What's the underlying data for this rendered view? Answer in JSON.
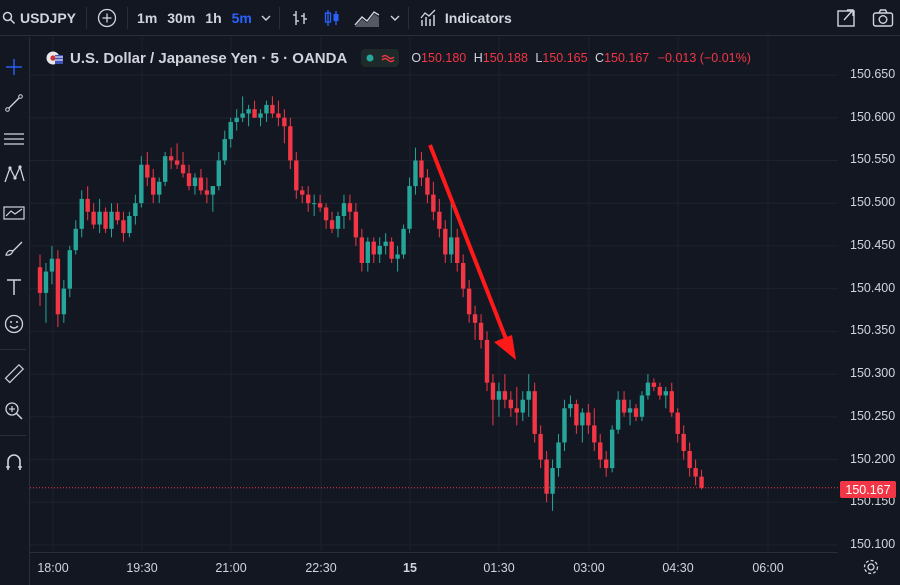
{
  "topbar": {
    "symbol": "USDJPY",
    "timeframes": [
      "1m",
      "30m",
      "1h",
      "5m"
    ],
    "active_timeframe": "5m",
    "indicators_label": "Indicators"
  },
  "legend": {
    "title": "U.S. Dollar / Japanese Yen · 5 · OANDA",
    "o_label": "O",
    "o_value": "150.180",
    "h_label": "H",
    "h_value": "150.188",
    "l_label": "L",
    "l_value": "150.165",
    "c_label": "C",
    "c_value": "150.167",
    "change": "−0.013 (−0.01%)"
  },
  "price_axis": {
    "labels": [
      "150.650",
      "150.600",
      "150.550",
      "150.500",
      "150.450",
      "150.400",
      "150.350",
      "150.300",
      "150.250",
      "150.200",
      "150.150",
      "150.100"
    ],
    "last_price": "150.167"
  },
  "time_axis": {
    "labels": [
      "18:00",
      "19:30",
      "21:00",
      "22:30",
      "15",
      "01:30",
      "03:00",
      "04:30",
      "06:00"
    ]
  },
  "colors": {
    "up": "#26a69a",
    "down": "#f23645",
    "background": "#131722",
    "grid": "#1e222d",
    "arrow": "#ff1a1a",
    "accent": "#2962ff"
  },
  "icons": {
    "left_toolbar": [
      "crosshair-icon",
      "trendline-icon",
      "fib-icon",
      "pattern-icon",
      "forecast-icon",
      "brush-icon",
      "text-icon",
      "emoji-icon",
      "ruler-icon",
      "zoom-icon",
      "magnet-icon"
    ]
  },
  "chart_data": {
    "type": "candlestick",
    "symbol": "USDJPY",
    "interval": "5",
    "ylim": [
      150.1,
      150.65
    ],
    "x_ticks": [
      "18:00",
      "19:30",
      "21:00",
      "22:30",
      "15",
      "01:30",
      "03:00",
      "04:30",
      "06:00"
    ],
    "annotation": "downward-arrow",
    "last_price": 150.167,
    "candles": [
      [
        150.425,
        150.44,
        150.38,
        150.395
      ],
      [
        150.395,
        150.43,
        150.36,
        150.42
      ],
      [
        150.42,
        150.45,
        150.405,
        150.435
      ],
      [
        150.435,
        150.445,
        150.355,
        150.37
      ],
      [
        150.37,
        150.41,
        150.36,
        150.4
      ],
      [
        150.4,
        150.45,
        150.39,
        150.445
      ],
      [
        150.445,
        150.48,
        150.44,
        150.47
      ],
      [
        150.47,
        150.515,
        150.46,
        150.505
      ],
      [
        150.505,
        150.52,
        150.48,
        150.49
      ],
      [
        150.49,
        150.5,
        150.47,
        150.475
      ],
      [
        150.475,
        150.505,
        150.465,
        150.49
      ],
      [
        150.49,
        150.495,
        150.465,
        150.47
      ],
      [
        150.47,
        150.5,
        150.46,
        150.49
      ],
      [
        150.49,
        150.5,
        150.475,
        150.48
      ],
      [
        150.48,
        150.49,
        150.455,
        150.465
      ],
      [
        150.465,
        150.49,
        150.46,
        150.485
      ],
      [
        150.485,
        150.51,
        150.475,
        150.5
      ],
      [
        150.5,
        150.555,
        150.495,
        150.545
      ],
      [
        150.545,
        150.56,
        150.52,
        150.53
      ],
      [
        150.53,
        150.54,
        150.5,
        150.51
      ],
      [
        150.51,
        150.53,
        150.5,
        150.525
      ],
      [
        150.525,
        150.56,
        150.52,
        150.555
      ],
      [
        150.555,
        150.565,
        150.54,
        150.55
      ],
      [
        150.55,
        150.57,
        150.54,
        150.545
      ],
      [
        150.545,
        150.56,
        150.53,
        150.535
      ],
      [
        150.535,
        150.545,
        150.515,
        150.52
      ],
      [
        150.52,
        150.535,
        150.51,
        150.53
      ],
      [
        150.53,
        150.54,
        150.51,
        150.515
      ],
      [
        150.515,
        150.53,
        150.5,
        150.51
      ],
      [
        150.51,
        150.52,
        150.49,
        150.52
      ],
      [
        150.52,
        150.56,
        150.515,
        150.55
      ],
      [
        150.55,
        150.585,
        150.545,
        150.575
      ],
      [
        150.575,
        150.6,
        150.565,
        150.595
      ],
      [
        150.595,
        150.61,
        150.585,
        150.6
      ],
      [
        150.6,
        150.625,
        150.595,
        150.605
      ],
      [
        150.605,
        150.615,
        150.59,
        150.61
      ],
      [
        150.61,
        150.62,
        150.6,
        150.6
      ],
      [
        150.6,
        150.61,
        150.59,
        150.605
      ],
      [
        150.605,
        150.62,
        150.595,
        150.615
      ],
      [
        150.615,
        150.625,
        150.6,
        150.605
      ],
      [
        150.605,
        150.62,
        150.59,
        150.6
      ],
      [
        150.6,
        150.61,
        150.57,
        150.59
      ],
      [
        150.59,
        150.6,
        150.54,
        150.55
      ],
      [
        150.55,
        150.56,
        150.505,
        150.515
      ],
      [
        150.515,
        150.52,
        150.5,
        150.51
      ],
      [
        150.51,
        150.52,
        150.49,
        150.5
      ],
      [
        150.5,
        150.51,
        150.485,
        150.5
      ],
      [
        150.5,
        150.51,
        150.49,
        150.495
      ],
      [
        150.495,
        150.5,
        150.47,
        150.48
      ],
      [
        150.48,
        150.49,
        150.465,
        150.47
      ],
      [
        150.47,
        150.49,
        150.46,
        150.485
      ],
      [
        150.485,
        150.51,
        150.47,
        150.5
      ],
      [
        150.5,
        150.51,
        150.48,
        150.49
      ],
      [
        150.49,
        150.5,
        150.45,
        150.46
      ],
      [
        150.46,
        150.47,
        150.42,
        150.43
      ],
      [
        150.43,
        150.46,
        150.42,
        150.455
      ],
      [
        150.455,
        150.46,
        150.43,
        150.44
      ],
      [
        150.44,
        150.46,
        150.43,
        150.45
      ],
      [
        150.45,
        150.465,
        150.44,
        150.455
      ],
      [
        150.455,
        150.46,
        150.43,
        150.435
      ],
      [
        150.435,
        150.45,
        150.42,
        150.44
      ],
      [
        150.44,
        150.475,
        150.435,
        150.47
      ],
      [
        150.47,
        150.53,
        150.465,
        150.52
      ],
      [
        150.52,
        150.565,
        150.51,
        150.55
      ],
      [
        150.55,
        150.56,
        150.52,
        150.53
      ],
      [
        150.53,
        150.54,
        150.5,
        150.51
      ],
      [
        150.51,
        150.525,
        150.48,
        150.49
      ],
      [
        150.49,
        150.505,
        150.46,
        150.47
      ],
      [
        150.47,
        150.48,
        150.43,
        150.44
      ],
      [
        150.44,
        150.5,
        150.43,
        150.46
      ],
      [
        150.46,
        150.47,
        150.42,
        150.43
      ],
      [
        150.43,
        150.44,
        150.39,
        150.4
      ],
      [
        150.4,
        150.41,
        150.36,
        150.37
      ],
      [
        150.37,
        150.38,
        150.34,
        150.36
      ],
      [
        150.36,
        150.37,
        150.33,
        150.34
      ],
      [
        150.34,
        150.35,
        150.28,
        150.29
      ],
      [
        150.29,
        150.3,
        150.24,
        150.27
      ],
      [
        150.27,
        150.29,
        150.25,
        150.28
      ],
      [
        150.28,
        150.3,
        150.26,
        150.27
      ],
      [
        150.27,
        150.28,
        150.25,
        150.26
      ],
      [
        150.26,
        150.285,
        150.24,
        150.255
      ],
      [
        150.255,
        150.28,
        150.245,
        150.27
      ],
      [
        150.27,
        150.3,
        150.25,
        150.28
      ],
      [
        150.28,
        150.29,
        150.22,
        150.23
      ],
      [
        150.23,
        150.24,
        150.19,
        150.2
      ],
      [
        150.2,
        150.21,
        150.15,
        150.16
      ],
      [
        150.16,
        150.2,
        150.14,
        150.19
      ],
      [
        150.19,
        150.23,
        150.18,
        150.22
      ],
      [
        150.22,
        150.27,
        150.21,
        150.26
      ],
      [
        150.26,
        150.275,
        150.25,
        150.265
      ],
      [
        150.265,
        150.27,
        150.23,
        150.24
      ],
      [
        150.24,
        150.26,
        150.22,
        150.255
      ],
      [
        150.255,
        150.265,
        150.23,
        150.24
      ],
      [
        150.24,
        150.26,
        150.21,
        150.22
      ],
      [
        150.22,
        150.23,
        150.19,
        150.2
      ],
      [
        150.2,
        150.21,
        150.18,
        150.19
      ],
      [
        150.19,
        150.24,
        150.185,
        150.235
      ],
      [
        150.235,
        150.28,
        150.23,
        150.27
      ],
      [
        150.27,
        150.28,
        150.25,
        150.255
      ],
      [
        150.255,
        150.27,
        150.24,
        150.26
      ],
      [
        150.26,
        150.265,
        150.245,
        150.25
      ],
      [
        150.25,
        150.28,
        150.245,
        150.275
      ],
      [
        150.275,
        150.3,
        150.27,
        150.29
      ],
      [
        150.29,
        150.295,
        150.28,
        150.285
      ],
      [
        150.285,
        150.29,
        150.27,
        150.275
      ],
      [
        150.275,
        150.285,
        150.26,
        150.28
      ],
      [
        150.28,
        150.29,
        150.25,
        150.255
      ],
      [
        150.255,
        150.26,
        150.22,
        150.23
      ],
      [
        150.23,
        150.24,
        150.2,
        150.21
      ],
      [
        150.21,
        150.22,
        150.18,
        150.19
      ],
      [
        150.19,
        150.2,
        150.17,
        150.18
      ],
      [
        150.18,
        150.188,
        150.165,
        150.167
      ]
    ]
  }
}
